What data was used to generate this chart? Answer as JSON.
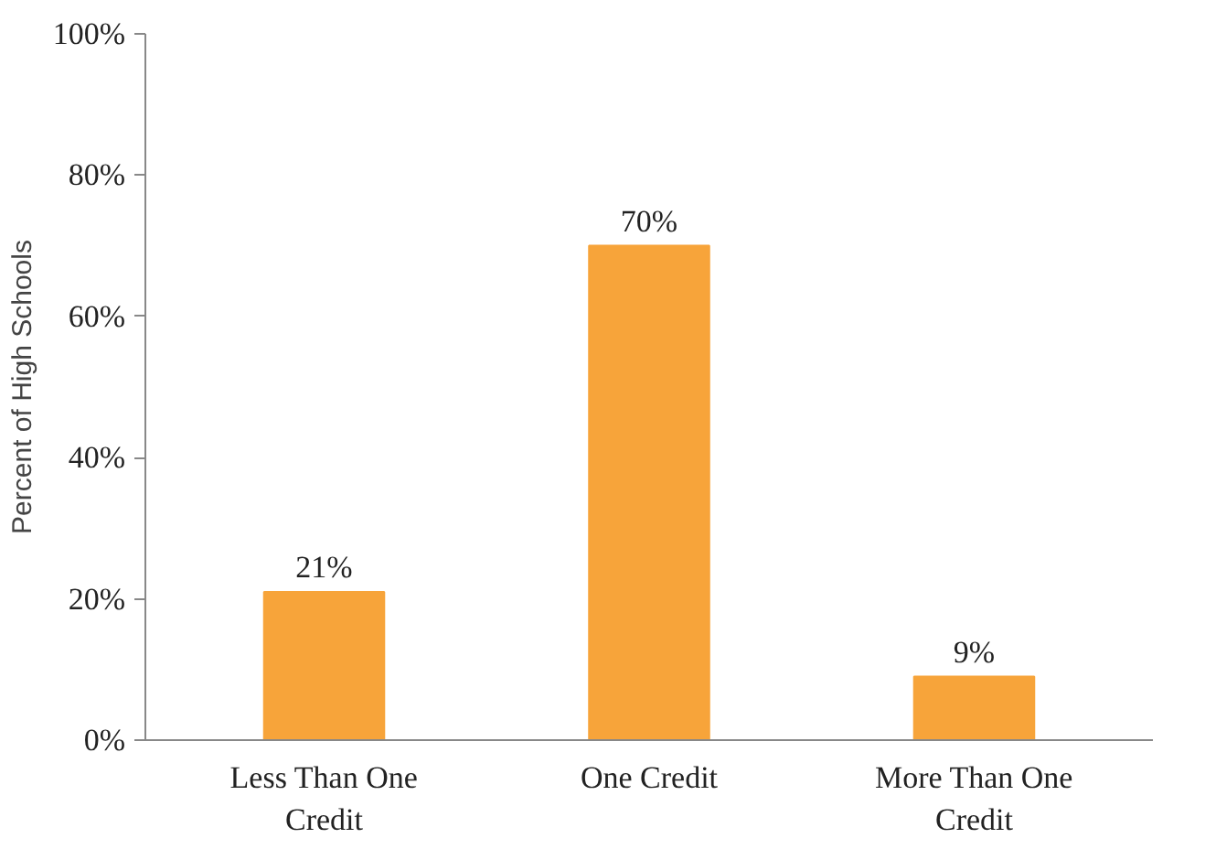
{
  "chart_data": {
    "type": "bar",
    "ylabel": "Percent of High Schools",
    "categories": [
      "Less Than One Credit",
      "One Credit",
      "More Than One Credit"
    ],
    "values": [
      21,
      70,
      9
    ],
    "color": "#f7a43a",
    "value_labels": [
      "21%",
      "70%",
      "9%"
    ],
    "ylim": [
      0,
      100
    ],
    "yticks": [
      {
        "value": 0,
        "label": "0%"
      },
      {
        "value": 20,
        "label": "20%"
      },
      {
        "value": 40,
        "label": "40%"
      },
      {
        "value": 60,
        "label": "60%"
      },
      {
        "value": 80,
        "label": "80%"
      },
      {
        "value": 100,
        "label": "100%"
      }
    ],
    "grid": false
  }
}
